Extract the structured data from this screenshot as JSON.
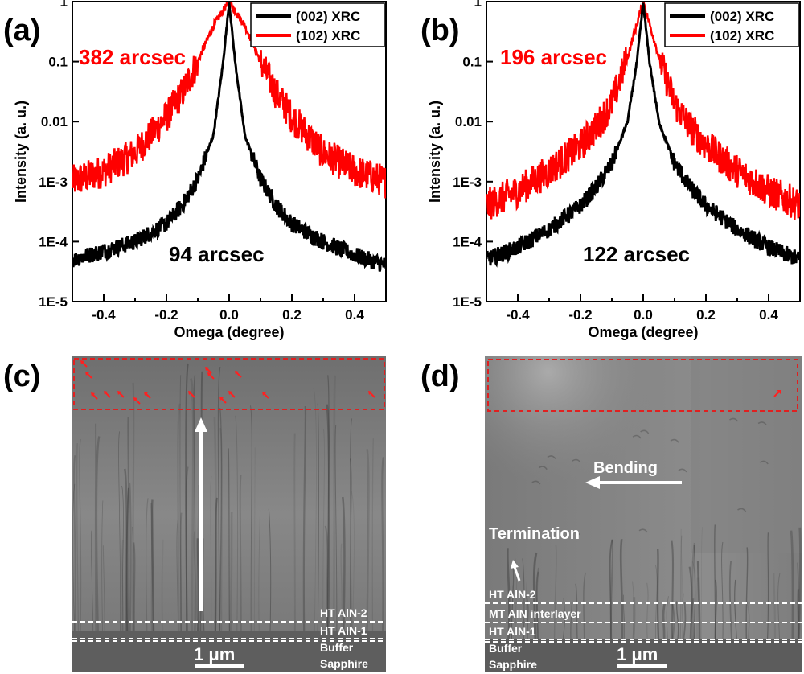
{
  "panels": {
    "a": "(a)",
    "b": "(b)",
    "c": "(c)",
    "d": "(d)"
  },
  "chart_data": [
    {
      "type": "line",
      "panel": "(a)",
      "xlabel": "Omega (degree)",
      "ylabel": "Intensity (a. u.)",
      "xlim": [
        -0.5,
        0.5
      ],
      "ylim": [
        1e-05,
        1
      ],
      "yscale": "log",
      "xticks": [
        "-0.4",
        "-0.2",
        "0.0",
        "0.2",
        "0.4"
      ],
      "yticks": [
        "1E-5",
        "1E-4",
        "1E-3",
        "0.01",
        "0.1",
        "1"
      ],
      "legend_position": "top-right",
      "series": [
        {
          "name": "(002) XRC",
          "color": "#000000",
          "fwhm_label": "94 arcsec",
          "x": [
            -0.5,
            -0.4,
            -0.3,
            -0.2,
            -0.15,
            -0.1,
            -0.05,
            -0.02,
            0.0,
            0.02,
            0.05,
            0.1,
            0.15,
            0.2,
            0.3,
            0.4,
            0.5
          ],
          "y": [
            5e-05,
            7e-05,
            0.0001,
            0.0002,
            0.0004,
            0.0011,
            0.006,
            0.09,
            0.96,
            0.09,
            0.006,
            0.0011,
            0.0004,
            0.0002,
            0.0001,
            6e-05,
            4e-05
          ]
        },
        {
          "name": "(102) XRC",
          "color": "#ff0000",
          "fwhm_label": "382 arcsec",
          "x": [
            -0.5,
            -0.4,
            -0.3,
            -0.2,
            -0.15,
            -0.1,
            -0.05,
            0.0,
            0.05,
            0.1,
            0.15,
            0.2,
            0.3,
            0.4,
            0.5
          ],
          "y": [
            0.001,
            0.0015,
            0.003,
            0.012,
            0.03,
            0.1,
            0.4,
            1.0,
            0.4,
            0.1,
            0.03,
            0.012,
            0.003,
            0.0015,
            0.001
          ]
        }
      ]
    },
    {
      "type": "line",
      "panel": "(b)",
      "xlabel": "Omega (degree)",
      "ylabel": "Intensity (a. u.)",
      "xlim": [
        -0.5,
        0.5
      ],
      "ylim": [
        1e-05,
        1
      ],
      "yscale": "log",
      "xticks": [
        "-0.4",
        "-0.2",
        "0.0",
        "0.2",
        "0.4"
      ],
      "yticks": [
        "1E-5",
        "1E-4",
        "1E-3",
        "0.01",
        "0.1",
        "1"
      ],
      "legend_position": "top-right",
      "series": [
        {
          "name": "(002) XRC",
          "color": "#000000",
          "fwhm_label": "122 arcsec",
          "x": [
            -0.5,
            -0.4,
            -0.3,
            -0.2,
            -0.15,
            -0.1,
            -0.05,
            -0.02,
            0.0,
            0.02,
            0.05,
            0.1,
            0.15,
            0.2,
            0.3,
            0.4,
            0.5
          ],
          "y": [
            5e-05,
            8e-05,
            0.00016,
            0.0004,
            0.0008,
            0.002,
            0.01,
            0.1,
            0.97,
            0.1,
            0.01,
            0.002,
            0.0008,
            0.0004,
            0.00016,
            8e-05,
            5e-05
          ]
        },
        {
          "name": "(102) XRC",
          "color": "#ff0000",
          "fwhm_label": "196 arcsec",
          "x": [
            -0.5,
            -0.4,
            -0.3,
            -0.2,
            -0.15,
            -0.1,
            -0.05,
            0.0,
            0.05,
            0.1,
            0.15,
            0.2,
            0.3,
            0.4,
            0.5
          ],
          "y": [
            0.0004,
            0.0007,
            0.0015,
            0.004,
            0.008,
            0.02,
            0.12,
            1.0,
            0.12,
            0.02,
            0.008,
            0.004,
            0.0015,
            0.0007,
            0.0004
          ]
        }
      ]
    }
  ],
  "tem_c": {
    "layers": [
      "HT AlN-2",
      "HT AlN-1",
      "Buffer",
      "Sapphire"
    ],
    "scale_bar": "1 μm"
  },
  "tem_d": {
    "layers": [
      "HT AlN-2",
      "MT AlN interlayer",
      "HT AlN-1",
      "Buffer",
      "Sapphire"
    ],
    "scale_bar": "1 μm",
    "bending": "Bending",
    "termination": "Termination"
  },
  "colors": {
    "series_002": "#000000",
    "series_102": "#ff0000",
    "box": "#e02020"
  }
}
